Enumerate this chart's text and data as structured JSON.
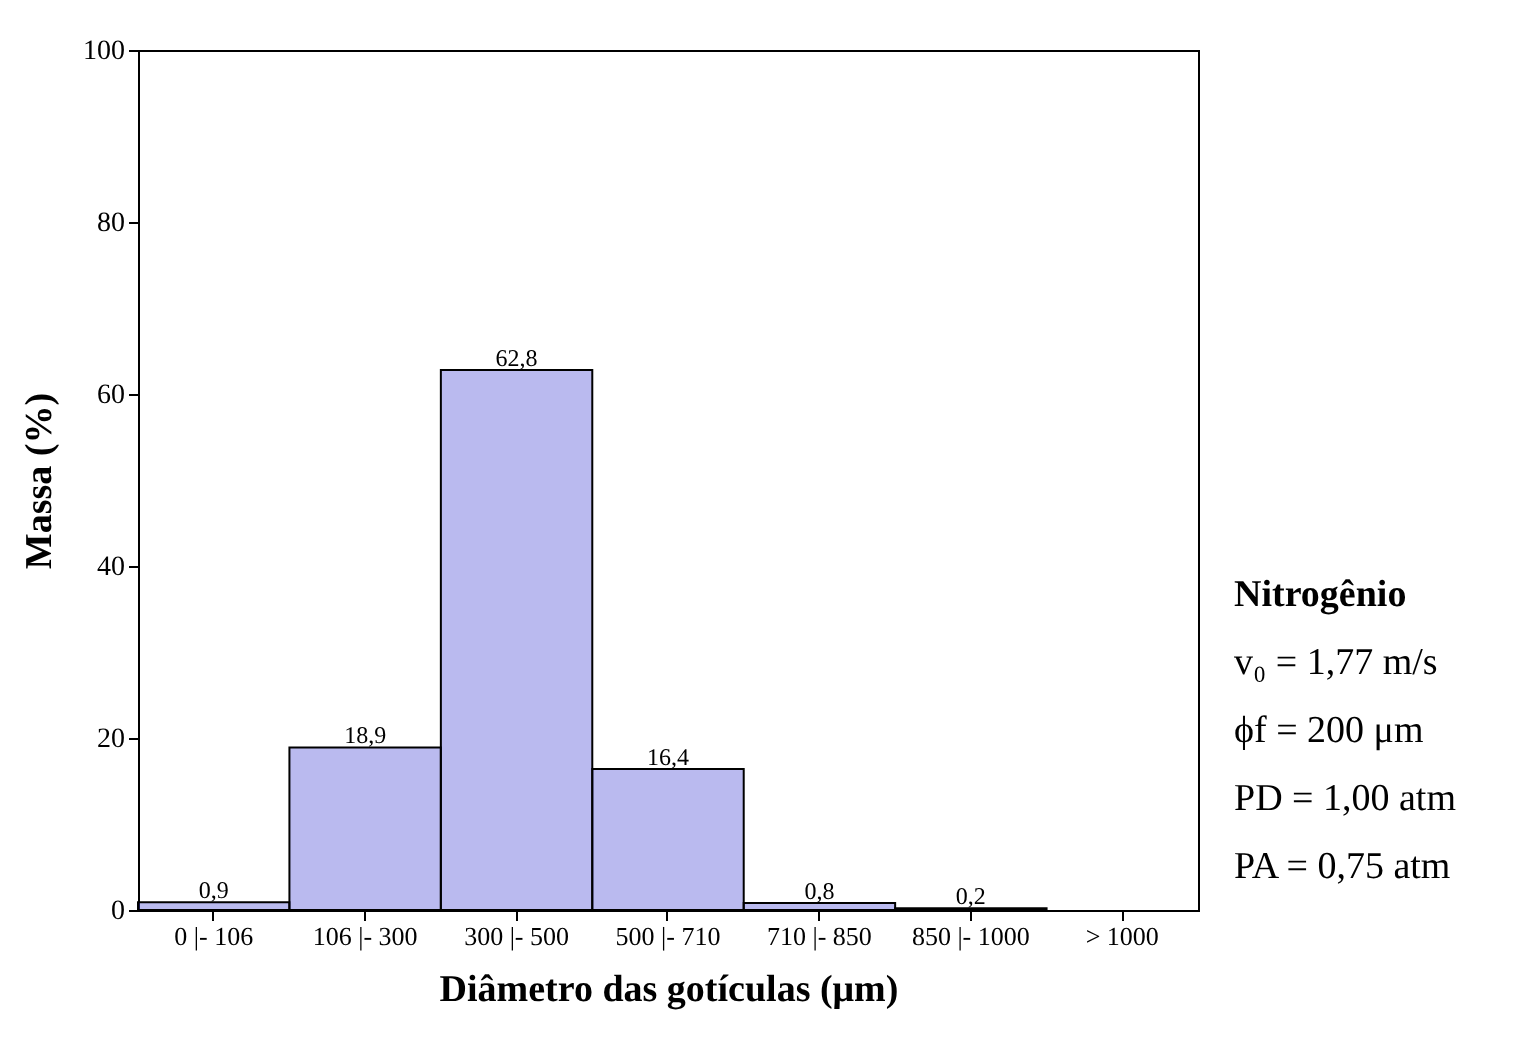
{
  "chart_data": {
    "type": "bar",
    "xlabel": "Diâmetro das gotículas (μm)",
    "ylabel": "Massa (%)",
    "categories": [
      "0 |- 106",
      "106 |- 300",
      "300 |- 500",
      "500 |- 710",
      "710 |- 850",
      "850 |- 1000",
      "> 1000"
    ],
    "values": [
      0.9,
      18.9,
      62.8,
      16.4,
      0.8,
      0.2,
      null
    ],
    "value_labels": [
      "0,9",
      "18,9",
      "62,8",
      "16,4",
      "0,8",
      "0,2",
      null
    ],
    "color": "#3a3ad0",
    "ylim": [
      0,
      100
    ],
    "yticks": [
      0,
      20,
      40,
      60,
      80,
      100
    ],
    "grid": false,
    "annotations": [
      "Nitrogênio",
      "v₀ = 1,77 m/s",
      "ϕf = 200 μm",
      "PD = 1,00 atm",
      "PA = 0,75 atm"
    ]
  }
}
